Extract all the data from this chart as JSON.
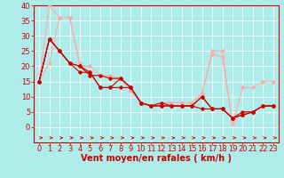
{
  "title": "",
  "xlabel": "Vent moyen/en rafales ( km/h )",
  "background_color": "#aeecea",
  "grid_color": "#ffffff",
  "xlim": [
    -0.5,
    23.5
  ],
  "ylim": [
    0,
    40
  ],
  "yticks": [
    0,
    5,
    10,
    15,
    20,
    25,
    30,
    35,
    40
  ],
  "xticks": [
    0,
    1,
    2,
    3,
    4,
    5,
    6,
    7,
    8,
    9,
    10,
    11,
    12,
    13,
    14,
    15,
    16,
    17,
    18,
    19,
    20,
    21,
    22,
    23
  ],
  "line1": {
    "x": [
      0,
      1,
      2,
      3,
      4,
      5,
      6,
      7,
      8,
      9,
      10,
      11,
      12,
      13,
      14,
      15,
      16,
      17,
      18,
      19,
      20,
      21,
      22,
      23
    ],
    "y": [
      15,
      21,
      36,
      36,
      20,
      20,
      17,
      17,
      16,
      12,
      8,
      7,
      8,
      8,
      8,
      8,
      11,
      25,
      25,
      1,
      5,
      5,
      7,
      7
    ],
    "color": "#ffaaaa",
    "marker": "D",
    "markersize": 1.8,
    "linewidth": 0.8
  },
  "line2": {
    "x": [
      0,
      1,
      2,
      3,
      4,
      5,
      6,
      7,
      8,
      9,
      10,
      11,
      12,
      13,
      14,
      15,
      16,
      17,
      18,
      19,
      20,
      21,
      22,
      23
    ],
    "y": [
      15,
      40,
      36,
      36,
      21,
      17,
      17,
      16,
      16,
      12,
      8,
      7,
      8,
      8,
      8,
      8,
      11,
      24,
      23,
      1,
      13,
      13,
      15,
      15
    ],
    "color": "#ffaaaa",
    "marker": "D",
    "markersize": 1.8,
    "linewidth": 0.8
  },
  "line3": {
    "x": [
      0,
      1,
      2,
      3,
      4,
      5,
      6,
      7,
      8,
      9,
      10,
      11,
      12,
      13,
      14,
      15,
      16,
      17,
      18,
      19,
      20,
      21,
      22,
      23
    ],
    "y": [
      15,
      29,
      25,
      21,
      20,
      17,
      17,
      16,
      16,
      13,
      8,
      7,
      8,
      7,
      7,
      7,
      10,
      6,
      6,
      3,
      5,
      5,
      7,
      7
    ],
    "color": "#cc0000",
    "marker": "D",
    "markersize": 1.8,
    "linewidth": 0.8
  },
  "line4": {
    "x": [
      0,
      1,
      2,
      3,
      4,
      5,
      6,
      7,
      8,
      9,
      10,
      11,
      12,
      13,
      14,
      15,
      16,
      17,
      18,
      19,
      20,
      21,
      22,
      23
    ],
    "y": [
      15,
      29,
      25,
      21,
      20,
      18,
      13,
      13,
      16,
      13,
      8,
      7,
      7,
      7,
      7,
      7,
      10,
      6,
      6,
      3,
      4,
      5,
      7,
      7
    ],
    "color": "#cc0000",
    "marker": "D",
    "markersize": 1.8,
    "linewidth": 0.8
  },
  "line5": {
    "x": [
      0,
      1,
      2,
      3,
      4,
      5,
      6,
      7,
      8,
      9,
      10,
      11,
      12,
      13,
      14,
      15,
      16,
      17,
      18,
      19,
      20,
      21,
      22,
      23
    ],
    "y": [
      15,
      29,
      25,
      21,
      18,
      18,
      13,
      13,
      13,
      13,
      8,
      7,
      7,
      7,
      7,
      7,
      6,
      6,
      6,
      3,
      4,
      5,
      7,
      7
    ],
    "color": "#cc0000",
    "marker": "D",
    "markersize": 1.8,
    "linewidth": 0.8
  },
  "xlabel_color": "#cc0000",
  "xlabel_fontsize": 7,
  "tick_fontsize": 6,
  "tick_color": "#cc0000",
  "axis_color": "#cc0000"
}
